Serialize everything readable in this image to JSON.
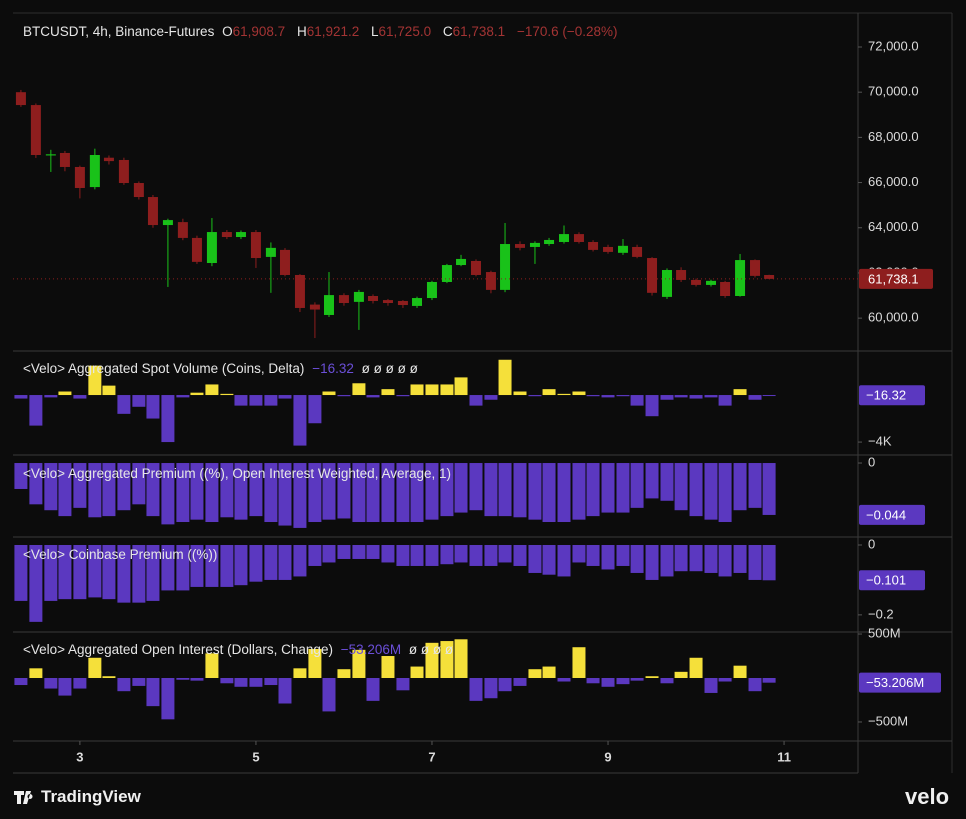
{
  "chart_data": [
    {
      "type": "candlestick",
      "title": "BTCUSDT, 4h, Binance-Futures",
      "ohlc_header": [
        {
          "label": "O",
          "value": "61,908.7"
        },
        {
          "label": "H",
          "value": "61,921.2"
        },
        {
          "label": "L",
          "value": "61,725.0"
        },
        {
          "label": "C",
          "value": "61,738.1"
        }
      ],
      "change": "−170.6 (−0.28%)",
      "x": [
        2.33,
        2.5,
        2.67,
        2.83,
        3,
        3.17,
        3.33,
        3.5,
        3.67,
        3.83,
        4,
        4.17,
        4.33,
        4.5,
        4.67,
        4.83,
        5,
        5.17,
        5.33,
        5.5,
        5.67,
        5.83,
        6,
        6.17,
        6.33,
        6.5,
        6.67,
        6.83,
        7,
        7.17,
        7.33,
        7.5,
        7.67,
        7.83,
        8,
        8.17,
        8.33,
        8.5,
        8.67,
        8.83,
        9,
        9.17,
        9.33,
        9.5,
        9.67,
        9.83,
        10,
        10.17,
        10.33,
        10.5,
        10.67,
        10.83
      ],
      "open": [
        70000,
        69430,
        67200,
        67310,
        66690,
        65800,
        67100,
        67000,
        65980,
        65360,
        64120,
        64250,
        63550,
        62440,
        63810,
        63590,
        63810,
        62710,
        63020,
        61910,
        60600,
        60140,
        61020,
        60720,
        60980,
        60800,
        60760,
        60540,
        60890,
        61600,
        62350,
        62530,
        62040,
        61250,
        63280,
        63150,
        63280,
        63370,
        63720,
        63370,
        63150,
        62890,
        63150,
        62660,
        60940,
        62130,
        61690,
        61470,
        61600,
        60980,
        62570,
        61908.7
      ],
      "high": [
        70100,
        69500,
        67450,
        67400,
        66750,
        67500,
        67200,
        67100,
        66050,
        65450,
        64400,
        64400,
        63650,
        64430,
        63900,
        63880,
        63900,
        63350,
        63100,
        61950,
        60700,
        62040,
        61100,
        61250,
        61050,
        60850,
        60800,
        60950,
        61650,
        62400,
        62800,
        62600,
        62100,
        64210,
        63400,
        63400,
        63550,
        64100,
        63800,
        63450,
        63250,
        63500,
        63250,
        62700,
        62200,
        62250,
        61750,
        61700,
        61650,
        62840,
        62600,
        61921.2
      ],
      "low": [
        69350,
        67090,
        66470,
        66500,
        65300,
        65700,
        66800,
        65900,
        65250,
        64000,
        61380,
        63450,
        62400,
        62300,
        63500,
        63500,
        62220,
        61120,
        61850,
        60270,
        59120,
        60050,
        60550,
        59480,
        60650,
        60550,
        60450,
        60450,
        60800,
        61550,
        62300,
        61850,
        61100,
        61150,
        63000,
        62400,
        63200,
        63300,
        63300,
        62950,
        62850,
        62800,
        62650,
        61000,
        60850,
        61600,
        61400,
        61400,
        60900,
        60950,
        61800,
        61725.0
      ],
      "close": [
        69430,
        67220,
        67250,
        66690,
        65760,
        67220,
        66950,
        65980,
        65360,
        64120,
        64340,
        63550,
        62490,
        63810,
        63590,
        63810,
        62660,
        63110,
        61910,
        60450,
        60380,
        61020,
        60670,
        61160,
        60760,
        60670,
        60580,
        60890,
        61600,
        62350,
        62620,
        61910,
        61250,
        63280,
        63110,
        63330,
        63460,
        63720,
        63370,
        63020,
        62930,
        63200,
        62710,
        61120,
        62130,
        61690,
        61470,
        61650,
        60980,
        62570,
        61870,
        61738.1
      ],
      "up_color": "#19c219",
      "down_color": "#8e1e1e",
      "xlim": [
        2.24,
        11.84
      ],
      "xticks": [
        3,
        5,
        7,
        9,
        11
      ],
      "ylim": [
        58590,
        73460
      ],
      "yticks": [
        {
          "value": 72000,
          "label": "72,000.0"
        },
        {
          "value": 70000,
          "label": "70,000.0"
        },
        {
          "value": 68000,
          "label": "68,000.0"
        },
        {
          "value": 66000,
          "label": "66,000.0"
        },
        {
          "value": 64000,
          "label": "64,000.0"
        },
        {
          "value": 62000,
          "label": "62,000.0"
        },
        {
          "value": 60000,
          "label": "60,000.0"
        }
      ],
      "current": {
        "value": 61738.1,
        "label": "61,738.1"
      }
    },
    {
      "type": "bar",
      "title": "<Velo> Aggregated Spot Volume (Coins, Delta)",
      "flags": "ø ø ø ø ø",
      "values": [
        -300,
        -2600,
        -200,
        300,
        -300,
        2500,
        800,
        -1600,
        -1000,
        -2000,
        -4000,
        -200,
        200,
        900,
        100,
        -900,
        -900,
        -900,
        -300,
        -4300,
        -2400,
        300,
        -100,
        1000,
        -200,
        500,
        -100,
        900,
        900,
        900,
        1500,
        -900,
        -400,
        3000,
        300,
        -100,
        500,
        100,
        300,
        -100,
        -200,
        -100,
        -900,
        -1800,
        -400,
        -200,
        -300,
        -200,
        -900,
        500,
        -400,
        -16.32
      ],
      "positive_color": "#f5e03a",
      "negative_color": "#5b38c0",
      "ylim": [
        -5100,
        3660
      ],
      "yticks": [
        {
          "value": -4000,
          "label": "−4K"
        }
      ],
      "current": {
        "value": -16.32,
        "label": "−16.32"
      }
    },
    {
      "type": "bar",
      "title": "<Velo> Aggregated Premium ((%), Open Interest Weighted, Average, 1)",
      "values": [
        -0.022,
        -0.035,
        -0.04,
        -0.045,
        -0.038,
        -0.046,
        -0.045,
        -0.04,
        -0.035,
        -0.045,
        -0.052,
        -0.05,
        -0.048,
        -0.05,
        -0.046,
        -0.048,
        -0.045,
        -0.05,
        -0.053,
        -0.055,
        -0.05,
        -0.048,
        -0.047,
        -0.05,
        -0.05,
        -0.05,
        -0.05,
        -0.05,
        -0.048,
        -0.045,
        -0.042,
        -0.04,
        -0.045,
        -0.045,
        -0.046,
        -0.048,
        -0.05,
        -0.05,
        -0.048,
        -0.045,
        -0.042,
        -0.042,
        -0.038,
        -0.03,
        -0.032,
        -0.04,
        -0.045,
        -0.048,
        -0.05,
        -0.04,
        -0.038,
        -0.044
      ],
      "positive_color": "#f5e03a",
      "negative_color": "#5b38c0",
      "ylim": [
        -0.0627,
        0.0068
      ],
      "yticks": [
        0
      ],
      "current": {
        "value": -0.044,
        "label": "−0.044"
      }
    },
    {
      "type": "bar",
      "title": "<Velo> Coinbase Premium ((%))",
      "values": [
        -0.16,
        -0.22,
        -0.16,
        -0.155,
        -0.155,
        -0.15,
        -0.155,
        -0.165,
        -0.165,
        -0.16,
        -0.13,
        -0.13,
        -0.12,
        -0.12,
        -0.12,
        -0.115,
        -0.105,
        -0.1,
        -0.1,
        -0.09,
        -0.06,
        -0.05,
        -0.04,
        -0.04,
        -0.04,
        -0.05,
        -0.06,
        -0.06,
        -0.06,
        -0.055,
        -0.05,
        -0.06,
        -0.06,
        -0.05,
        -0.06,
        -0.08,
        -0.085,
        -0.09,
        -0.05,
        -0.06,
        -0.07,
        -0.06,
        -0.08,
        -0.1,
        -0.09,
        -0.075,
        -0.075,
        -0.08,
        -0.09,
        -0.08,
        -0.1,
        -0.101
      ],
      "positive_color": "#f5e03a",
      "negative_color": "#5b38c0",
      "ylim": [
        -0.249,
        0.0229
      ],
      "yticks": [
        0,
        {
          "value": -0.2,
          "label": "−0.2"
        }
      ],
      "current": {
        "value": -0.101,
        "label": "−0.101"
      }
    },
    {
      "type": "bar",
      "title": "<Velo> Aggregated Open Interest (Dollars, Change)",
      "flags": "ø ø ø ø",
      "values": [
        -80,
        110,
        -120,
        -200,
        -120,
        230,
        20,
        -150,
        -90,
        -320,
        -470,
        -20,
        -30,
        280,
        -60,
        -100,
        -100,
        -80,
        -290,
        110,
        330,
        -380,
        100,
        320,
        -260,
        250,
        -140,
        130,
        400,
        420,
        440,
        -260,
        -230,
        -150,
        -90,
        100,
        130,
        -40,
        350,
        -60,
        -100,
        -70,
        -30,
        20,
        -60,
        70,
        230,
        -170,
        -40,
        140,
        -150,
        -53.206
      ],
      "positive_color": "#f5e03a",
      "negative_color": "#5b38c0",
      "ylim": [
        -705,
        523
      ],
      "yticks": [
        {
          "value": 500,
          "label": "500M"
        },
        {
          "value": -500,
          "label": "−500M"
        }
      ],
      "current": {
        "value": -53.206,
        "label": "−53.206M"
      }
    }
  ],
  "footer": {
    "brand": "TradingView",
    "partner": "velo"
  }
}
